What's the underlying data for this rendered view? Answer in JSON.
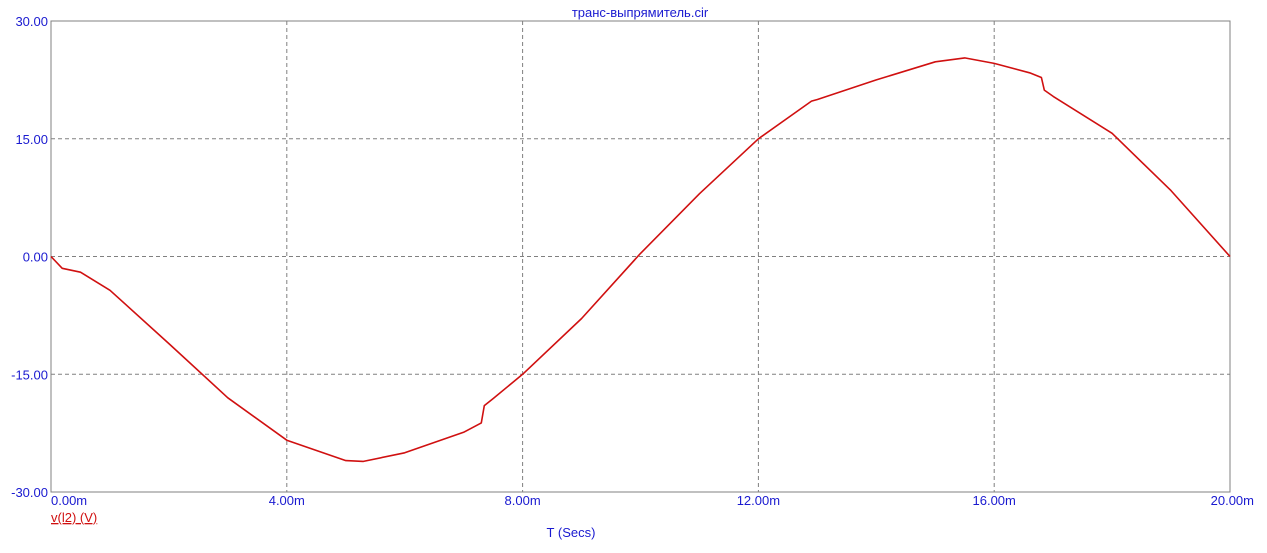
{
  "chart_data": {
    "type": "line",
    "title": "транс-выпрямитель.cir",
    "xlabel": "T (Secs)",
    "ylabel": "",
    "xlim": [
      0,
      20
    ],
    "ylim": [
      -30,
      30
    ],
    "grid": true,
    "x_tick_labels": [
      "0.00m",
      "4.00m",
      "8.00m",
      "12.00m",
      "16.00m",
      "20.00m"
    ],
    "x_ticks": [
      0,
      4,
      8,
      12,
      16,
      20
    ],
    "y_tick_labels": [
      "30.00",
      "15.00",
      "0.00",
      "-15.00",
      "-30.00"
    ],
    "y_ticks": [
      30,
      15,
      0,
      -15,
      -30
    ],
    "series": [
      {
        "name": "v(l2) (V)",
        "color": "#d01010",
        "x": [
          0,
          0.19,
          0.5,
          1,
          2,
          3,
          4,
          5,
          5.3,
          6,
          7,
          7.3,
          7.35,
          7.5,
          8,
          9,
          10,
          11,
          12,
          12.9,
          13,
          14,
          15,
          15.5,
          16,
          16.6,
          16.8,
          16.85,
          17,
          18,
          19,
          20
        ],
        "y": [
          0,
          -1.5,
          -2.0,
          -4.3,
          -11.1,
          -18,
          -23.4,
          -26,
          -26.1,
          -25,
          -22.4,
          -21.2,
          -19,
          -18.1,
          -15,
          -7.9,
          0.4,
          8,
          15,
          19.8,
          20,
          22.5,
          24.8,
          25.3,
          24.6,
          23.4,
          22.8,
          21.2,
          20.4,
          15.7,
          8.4,
          0
        ]
      }
    ]
  }
}
